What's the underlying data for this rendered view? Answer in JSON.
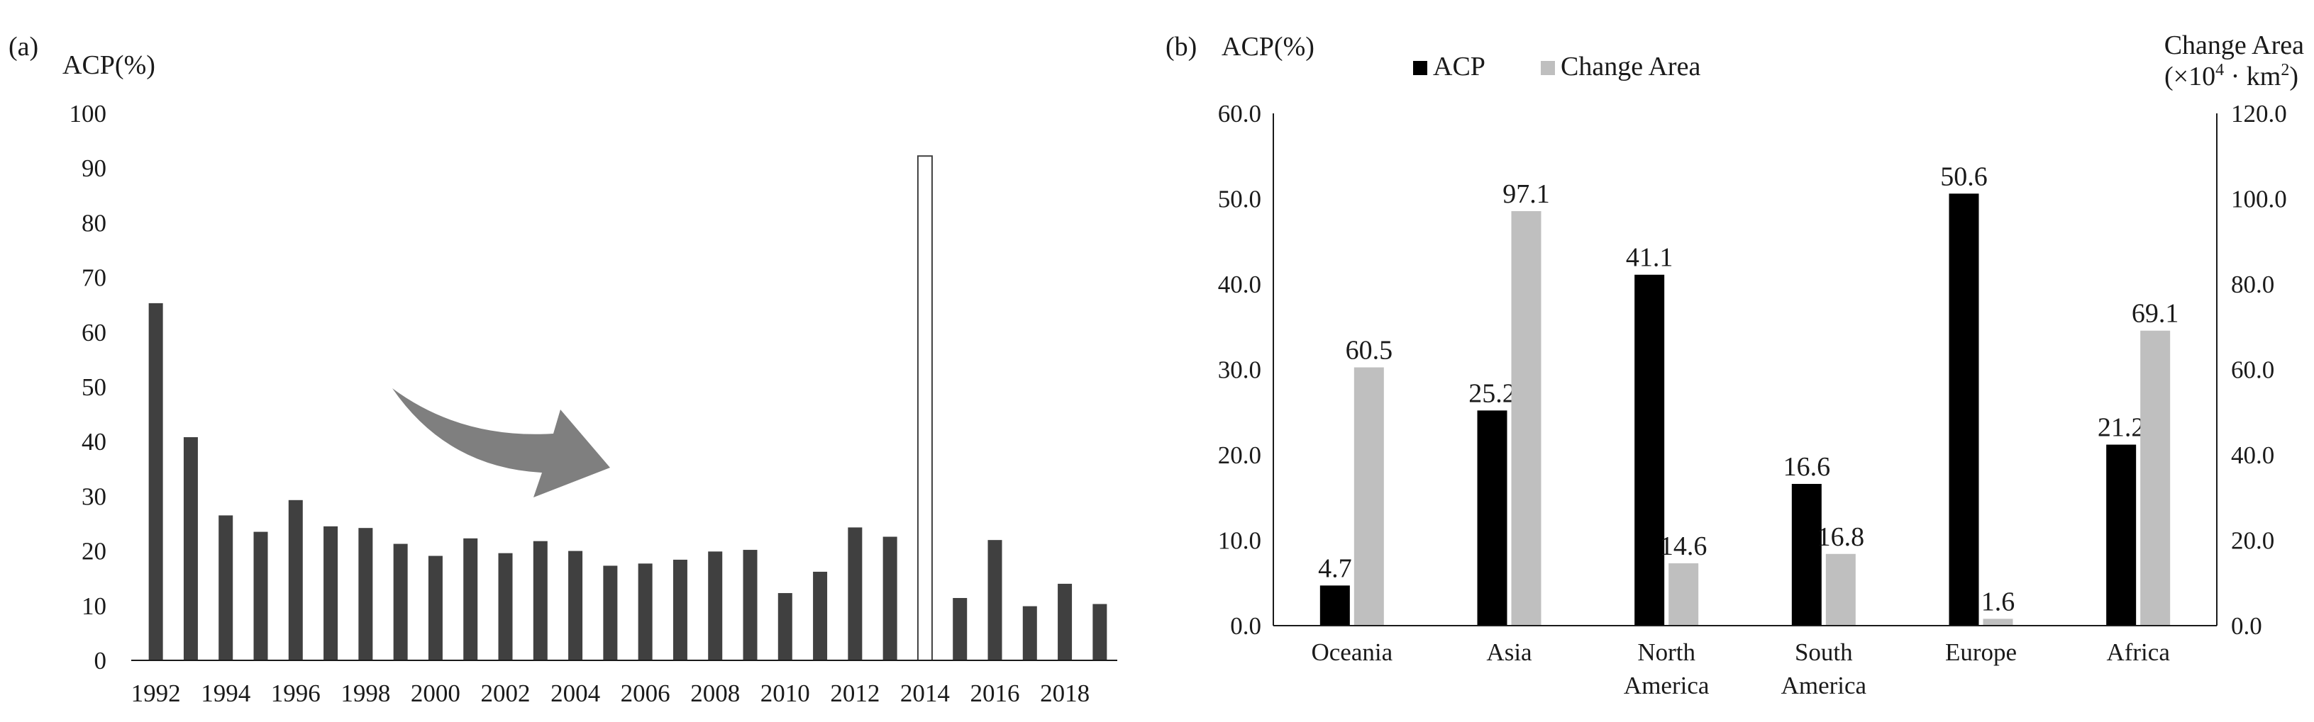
{
  "chart_data": [
    {
      "panel_label": "(a)",
      "type": "bar",
      "title": "",
      "ylabel": "ACP(%)",
      "xlabel": "",
      "ylim": [
        0,
        100
      ],
      "y_ticks": [
        "0",
        "10",
        "20",
        "30",
        "40",
        "50",
        "60",
        "70",
        "80",
        "90",
        "100"
      ],
      "categories": [
        "1992",
        "1993",
        "1994",
        "1995",
        "1996",
        "1997",
        "1998",
        "1999",
        "2000",
        "2001",
        "2002",
        "2003",
        "2004",
        "2005",
        "2006",
        "2007",
        "2008",
        "2009",
        "2010",
        "2011",
        "2012",
        "2013",
        "2014",
        "2015",
        "2016",
        "2017",
        "2018",
        "2019"
      ],
      "x_tick_labels": [
        "1992",
        "1994",
        "1996",
        "1998",
        "2000",
        "2002",
        "2004",
        "2006",
        "2008",
        "2010",
        "2012",
        "2014",
        "2016",
        "2018"
      ],
      "values": [
        65.3,
        40.8,
        26.5,
        23.5,
        29.3,
        24.5,
        24.2,
        21.3,
        19.1,
        22.3,
        19.6,
        21.8,
        20.0,
        17.3,
        17.7,
        18.4,
        19.9,
        20.2,
        12.3,
        16.2,
        24.3,
        22.6,
        92.2,
        11.4,
        22.0,
        9.9,
        14.0,
        10.3
      ],
      "highlight_category": "2014",
      "bar_color": "#404040",
      "highlight_fill": "#ffffff",
      "highlight_stroke": "#404040",
      "annotation": "downward-trend-arrow",
      "arrow_color": "#7f7f7f"
    },
    {
      "panel_label": "(b)",
      "type": "bar",
      "title": "",
      "ylabel": "ACP(%)",
      "y2label_line1": "Change Area",
      "y2label_line2_prefix": "(×10",
      "y2label_line2_exp": "4",
      "y2label_line2_mid": " · km",
      "y2label_line2_exp2": "2",
      "y2label_line2_suffix": ")",
      "ylim": [
        0,
        60
      ],
      "y2lim": [
        0,
        120
      ],
      "y_ticks": [
        "0.0",
        "10.0",
        "20.0",
        "30.0",
        "40.0",
        "50.0",
        "60.0"
      ],
      "y2_ticks": [
        "0.0",
        "20.0",
        "40.0",
        "60.0",
        "80.0",
        "100.0",
        "120.0"
      ],
      "categories": [
        [
          "Oceania"
        ],
        [
          "Asia"
        ],
        [
          "North",
          "America"
        ],
        [
          "South",
          "America"
        ],
        [
          "Europe"
        ],
        [
          "Africa"
        ]
      ],
      "legend_position": "top",
      "series": [
        {
          "name": "ACP",
          "axis": "left",
          "color": "#000000",
          "values": [
            4.7,
            25.2,
            41.1,
            16.6,
            50.6,
            21.2
          ],
          "labels": [
            "4.7",
            "25.2",
            "41.1",
            "16.6",
            "50.6",
            "21.2"
          ]
        },
        {
          "name": "Change Area",
          "axis": "right",
          "color": "#bfbfbf",
          "values": [
            60.5,
            97.1,
            14.6,
            16.8,
            1.6,
            69.1
          ],
          "labels": [
            "60.5",
            "97.1",
            "14.6",
            "16.8",
            "1.6",
            "69.1"
          ]
        }
      ]
    }
  ]
}
